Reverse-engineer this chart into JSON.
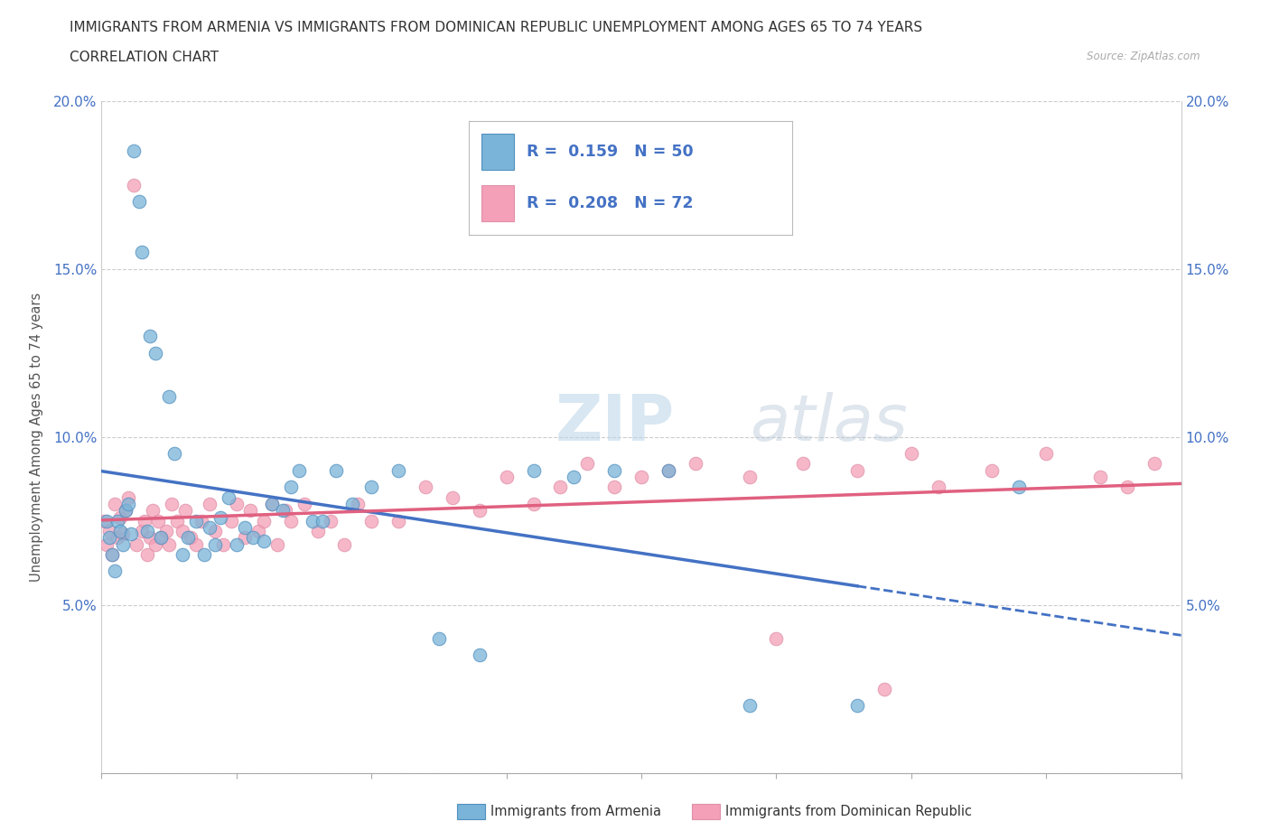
{
  "title_line1": "IMMIGRANTS FROM ARMENIA VS IMMIGRANTS FROM DOMINICAN REPUBLIC UNEMPLOYMENT AMONG AGES 65 TO 74 YEARS",
  "title_line2": "CORRELATION CHART",
  "source_text": "Source: ZipAtlas.com",
  "ylabel": "Unemployment Among Ages 65 to 74 years",
  "legend_armenia": "Immigrants from Armenia",
  "legend_dr": "Immigrants from Dominican Republic",
  "r_armenia": "0.159",
  "n_armenia": "50",
  "r_dr": "0.208",
  "n_dr": "72",
  "xlim": [
    0.0,
    0.4
  ],
  "ylim": [
    0.0,
    0.2
  ],
  "yticks": [
    0.0,
    0.05,
    0.1,
    0.15,
    0.2
  ],
  "ytick_labels": [
    "",
    "5.0%",
    "10.0%",
    "15.0%",
    "20.0%"
  ],
  "color_armenia": "#7ab4d8",
  "color_dr": "#f4a0b8",
  "color_armenia_line": "#4472c4",
  "color_dr_line": "#e06080",
  "watermark_part1": "ZIP",
  "watermark_part2": "atlas",
  "armenia_x": [
    0.002,
    0.003,
    0.004,
    0.005,
    0.006,
    0.007,
    0.008,
    0.009,
    0.01,
    0.011,
    0.012,
    0.014,
    0.015,
    0.017,
    0.018,
    0.02,
    0.022,
    0.025,
    0.027,
    0.03,
    0.032,
    0.035,
    0.038,
    0.04,
    0.042,
    0.044,
    0.047,
    0.05,
    0.053,
    0.056,
    0.06,
    0.063,
    0.067,
    0.07,
    0.073,
    0.078,
    0.082,
    0.087,
    0.093,
    0.1,
    0.11,
    0.125,
    0.14,
    0.16,
    0.175,
    0.19,
    0.21,
    0.24,
    0.28,
    0.34
  ],
  "armenia_y": [
    0.075,
    0.07,
    0.065,
    0.06,
    0.075,
    0.072,
    0.068,
    0.078,
    0.08,
    0.071,
    0.185,
    0.17,
    0.155,
    0.072,
    0.13,
    0.125,
    0.07,
    0.112,
    0.095,
    0.065,
    0.07,
    0.075,
    0.065,
    0.073,
    0.068,
    0.076,
    0.082,
    0.068,
    0.073,
    0.07,
    0.069,
    0.08,
    0.078,
    0.085,
    0.09,
    0.075,
    0.075,
    0.09,
    0.08,
    0.085,
    0.09,
    0.04,
    0.035,
    0.09,
    0.088,
    0.09,
    0.09,
    0.02,
    0.02,
    0.085
  ],
  "dr_x": [
    0.001,
    0.002,
    0.003,
    0.004,
    0.005,
    0.006,
    0.007,
    0.008,
    0.009,
    0.01,
    0.012,
    0.013,
    0.015,
    0.016,
    0.017,
    0.018,
    0.019,
    0.02,
    0.021,
    0.022,
    0.024,
    0.025,
    0.026,
    0.028,
    0.03,
    0.031,
    0.033,
    0.035,
    0.037,
    0.04,
    0.042,
    0.045,
    0.048,
    0.05,
    0.053,
    0.055,
    0.058,
    0.06,
    0.063,
    0.065,
    0.068,
    0.07,
    0.075,
    0.08,
    0.085,
    0.09,
    0.095,
    0.1,
    0.11,
    0.12,
    0.13,
    0.14,
    0.15,
    0.16,
    0.17,
    0.18,
    0.19,
    0.2,
    0.21,
    0.22,
    0.24,
    0.26,
    0.28,
    0.3,
    0.31,
    0.33,
    0.35,
    0.37,
    0.38,
    0.39,
    0.25,
    0.29
  ],
  "dr_y": [
    0.075,
    0.068,
    0.072,
    0.065,
    0.08,
    0.07,
    0.076,
    0.071,
    0.078,
    0.082,
    0.175,
    0.068,
    0.072,
    0.075,
    0.065,
    0.07,
    0.078,
    0.068,
    0.075,
    0.07,
    0.072,
    0.068,
    0.08,
    0.075,
    0.072,
    0.078,
    0.07,
    0.068,
    0.075,
    0.08,
    0.072,
    0.068,
    0.075,
    0.08,
    0.07,
    0.078,
    0.072,
    0.075,
    0.08,
    0.068,
    0.078,
    0.075,
    0.08,
    0.072,
    0.075,
    0.068,
    0.08,
    0.075,
    0.075,
    0.085,
    0.082,
    0.078,
    0.088,
    0.08,
    0.085,
    0.092,
    0.085,
    0.088,
    0.09,
    0.092,
    0.088,
    0.092,
    0.09,
    0.095,
    0.085,
    0.09,
    0.095,
    0.088,
    0.085,
    0.092,
    0.04,
    0.025
  ]
}
